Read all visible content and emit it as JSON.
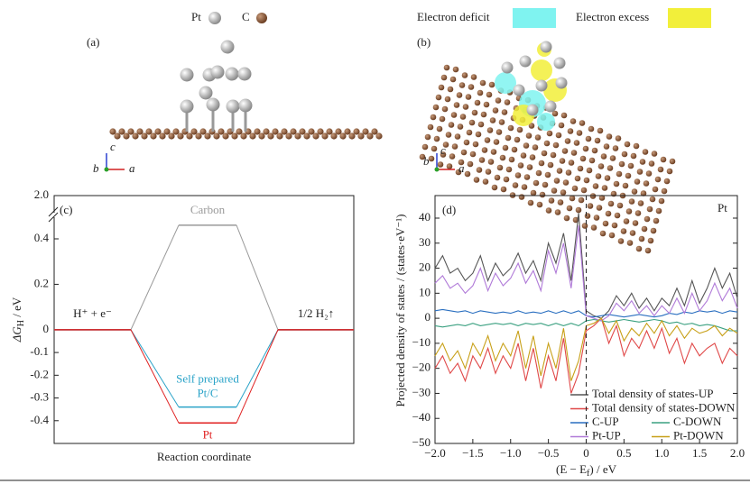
{
  "structure_panels": {
    "a": {
      "label": "(a)",
      "legend": [
        "Pt",
        "C"
      ],
      "axes": {
        "up": "c",
        "left": "b",
        "right": "a"
      }
    },
    "b": {
      "label": "(b)",
      "legend": [
        "Electron deficit",
        "Electron excess"
      ],
      "legend_colors": [
        "#7ff3f0",
        "#f2ef3a"
      ],
      "axes": {
        "up": "c",
        "left": "b",
        "right": "a"
      }
    }
  },
  "chart_data": [
    {
      "type": "energy_levels",
      "panel_label": "(c)",
      "xlabel": "Reaction coordinate",
      "ylabel": {
        "main": "ΔG",
        "sub": "H",
        "tail": " / eV"
      },
      "states": [
        "H⁺ + e⁻",
        null,
        "1/2 H₂↑"
      ],
      "series": [
        {
          "name": "Carbon",
          "color": "#9a9a9a",
          "values": [
            0,
            0.46,
            0
          ]
        },
        {
          "name": "Self prepared Pt/C",
          "color": "#2aa3c8",
          "values": [
            0,
            -0.34,
            0
          ]
        },
        {
          "name": "Pt",
          "color": "#e02020",
          "values": [
            0,
            -0.41,
            0
          ]
        }
      ],
      "ylim": [
        -0.5,
        2.0
      ],
      "yticks": [
        {
          "value": -0.4,
          "label": "-0.4"
        },
        {
          "value": -0.3,
          "label": "-0.3"
        },
        {
          "value": -0.2,
          "label": "-0.2"
        },
        {
          "value": -0.1,
          "label": "-0.1"
        },
        0,
        0.2,
        0.4,
        {
          "value": 2.0,
          "label": "2.0"
        }
      ],
      "axis_break": true
    },
    {
      "type": "line",
      "panel_label": "(d)",
      "annotation": "Pt",
      "xlabel": {
        "main": "(E − E",
        "sub": "f",
        "tail": ") / eV"
      },
      "ylabel": "Projected density of states / (states·eV⁻¹)",
      "fermi_level": 0,
      "x": [
        -2.0,
        -1.9,
        -1.8,
        -1.7,
        -1.6,
        -1.5,
        -1.4,
        -1.3,
        -1.2,
        -1.1,
        -1.0,
        -0.9,
        -0.8,
        -0.7,
        -0.6,
        -0.5,
        -0.4,
        -0.3,
        -0.2,
        -0.1,
        0.0,
        0.1,
        0.2,
        0.3,
        0.4,
        0.5,
        0.6,
        0.7,
        0.8,
        0.9,
        1.0,
        1.1,
        1.2,
        1.3,
        1.4,
        1.5,
        1.6,
        1.7,
        1.8,
        1.9,
        2.0
      ],
      "series": [
        {
          "name": "Total density of states-UP",
          "color": "#555555",
          "values": [
            20,
            25,
            18,
            20,
            15,
            18,
            25,
            15,
            22,
            17,
            20,
            26,
            18,
            23,
            15,
            30,
            22,
            34,
            15,
            42,
            3,
            1,
            0,
            3,
            9,
            5,
            10,
            4,
            8,
            3,
            8,
            5,
            12,
            5,
            15,
            6,
            12,
            20,
            12,
            18,
            8
          ]
        },
        {
          "name": "Total density of states-DOWN",
          "color": "#e04848",
          "values": [
            -20,
            -15,
            -22,
            -18,
            -25,
            -15,
            -20,
            -12,
            -22,
            -15,
            -20,
            -10,
            -25,
            -12,
            -28,
            -15,
            -25,
            -8,
            -30,
            -22,
            -5,
            -3,
            0,
            -10,
            -3,
            -15,
            -8,
            -12,
            -5,
            -12,
            -4,
            -14,
            -8,
            -18,
            -10,
            -15,
            -12,
            -10,
            -18,
            -12,
            -15
          ]
        },
        {
          "name": "C-UP",
          "color": "#2a6fc0",
          "values": [
            3,
            3.5,
            3,
            2.5,
            3,
            2,
            3,
            2.5,
            2,
            2.5,
            2,
            3,
            2,
            2.5,
            2,
            3,
            2,
            3,
            2,
            3,
            1,
            0.5,
            1,
            1.5,
            1,
            0.5,
            1,
            1.5,
            1,
            0.5,
            1,
            2,
            1.5,
            2.5,
            2,
            3,
            2.5,
            3,
            2,
            3,
            2.5
          ]
        },
        {
          "name": "C-DOWN",
          "color": "#3aa080",
          "values": [
            -3,
            -3.5,
            -3,
            -2.5,
            -3,
            -2,
            -3,
            -2.5,
            -2,
            -2.5,
            -2,
            -3,
            -2,
            -2.5,
            -2,
            -3,
            -2,
            -3,
            -2,
            -3,
            -1,
            -0.5,
            -1,
            -1.5,
            -1,
            -0.5,
            -1,
            -1.5,
            -1,
            -0.5,
            -1,
            -2,
            -1.5,
            -2.5,
            -2,
            -3,
            -2.5,
            -3,
            -4,
            -5,
            -5
          ]
        },
        {
          "name": "Pt-UP",
          "color": "#b07ad8",
          "values": [
            14,
            17,
            12,
            14,
            10,
            13,
            20,
            11,
            18,
            13,
            16,
            22,
            14,
            19,
            11,
            27,
            18,
            30,
            12,
            37,
            1,
            0,
            -1,
            1,
            6,
            3,
            7,
            2,
            5,
            1,
            5,
            2,
            8,
            2,
            10,
            3,
            7,
            14,
            7,
            12,
            4
          ]
        },
        {
          "name": "Pt-DOWN",
          "color": "#c8a018",
          "values": [
            -15,
            -10,
            -17,
            -13,
            -20,
            -10,
            -15,
            -7,
            -17,
            -10,
            -15,
            -5,
            -20,
            -7,
            -23,
            -10,
            -20,
            -4,
            -25,
            -17,
            -3,
            -2,
            0,
            -6,
            -1,
            -9,
            -4,
            -7,
            -2,
            -6,
            -1,
            -7,
            -3,
            -8,
            -4,
            -6,
            -5,
            -3,
            -7,
            -4,
            -6
          ]
        }
      ],
      "xlim": [
        -2.0,
        2.0
      ],
      "ylim": [
        -50,
        49
      ],
      "xticks": [
        {
          "value": -2.0,
          "label": "−2.0"
        },
        {
          "value": -1.5,
          "label": "−1.5"
        },
        {
          "value": -1.0,
          "label": "−1.0"
        },
        {
          "value": -0.5,
          "label": "−0.5"
        },
        0,
        {
          "value": 0.5,
          "label": "0.5"
        },
        {
          "value": 1.0,
          "label": "1.0"
        },
        {
          "value": 1.5,
          "label": "1.5"
        },
        {
          "value": 2.0,
          "label": "2.0"
        }
      ],
      "yticks": [
        {
          "value": -50,
          "label": "−50"
        },
        {
          "value": -40,
          "label": "−40"
        },
        {
          "value": -30,
          "label": "−30"
        },
        {
          "value": -20,
          "label": "−20"
        },
        {
          "value": -10,
          "label": "−10"
        },
        0,
        10,
        20,
        30,
        40
      ]
    }
  ]
}
